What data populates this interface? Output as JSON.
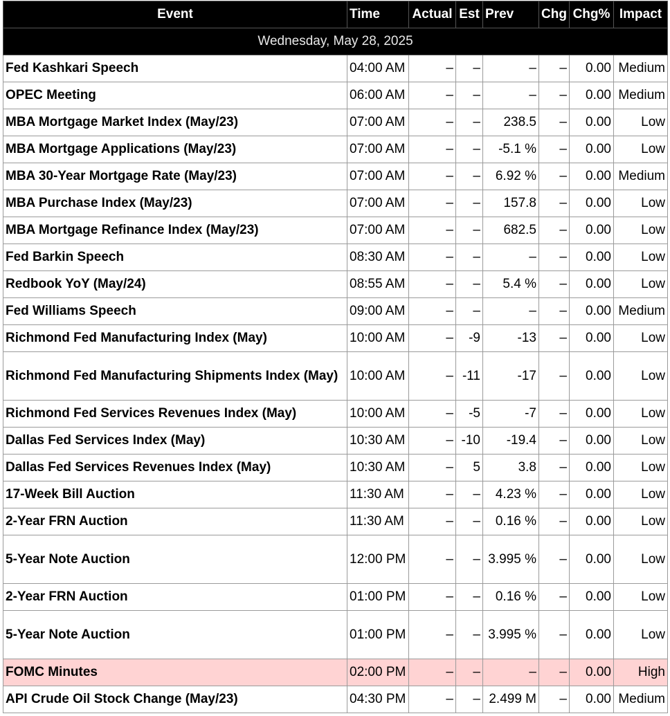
{
  "columns": {
    "event": "Event",
    "time": "Time",
    "actual": "Actual",
    "est": "Est",
    "prev": "Prev",
    "chg": "Chg",
    "chg_pct": "Chg%",
    "impact": "Impact"
  },
  "date_label": "Wednesday, May 28, 2025",
  "colors": {
    "header_bg": "#000000",
    "high_impact_row": "#ffd3d3"
  },
  "rows": [
    {
      "event": "Fed Kashkari Speech",
      "time": "04:00 AM",
      "actual": "–",
      "est": "–",
      "prev": "–",
      "chg": "–",
      "chg_pct": "0.00",
      "impact": "Medium"
    },
    {
      "event": "OPEC Meeting",
      "time": "06:00 AM",
      "actual": "–",
      "est": "–",
      "prev": "–",
      "chg": "–",
      "chg_pct": "0.00",
      "impact": "Medium"
    },
    {
      "event": "MBA Mortgage Market Index (May/23)",
      "time": "07:00 AM",
      "actual": "–",
      "est": "–",
      "prev": "238.5",
      "chg": "–",
      "chg_pct": "0.00",
      "impact": "Low"
    },
    {
      "event": "MBA Mortgage Applications (May/23)",
      "time": "07:00 AM",
      "actual": "–",
      "est": "–",
      "prev": "-5.1 %",
      "chg": "–",
      "chg_pct": "0.00",
      "impact": "Low"
    },
    {
      "event": "MBA 30-Year Mortgage Rate (May/23)",
      "time": "07:00 AM",
      "actual": "–",
      "est": "–",
      "prev": "6.92 %",
      "chg": "–",
      "chg_pct": "0.00",
      "impact": "Medium"
    },
    {
      "event": "MBA Purchase Index (May/23)",
      "time": "07:00 AM",
      "actual": "–",
      "est": "–",
      "prev": "157.8",
      "chg": "–",
      "chg_pct": "0.00",
      "impact": "Low"
    },
    {
      "event": "MBA Mortgage Refinance Index (May/23)",
      "time": "07:00 AM",
      "actual": "–",
      "est": "–",
      "prev": "682.5",
      "chg": "–",
      "chg_pct": "0.00",
      "impact": "Low"
    },
    {
      "event": "Fed Barkin Speech",
      "time": "08:30 AM",
      "actual": "–",
      "est": "–",
      "prev": "–",
      "chg": "–",
      "chg_pct": "0.00",
      "impact": "Low"
    },
    {
      "event": "Redbook YoY (May/24)",
      "time": "08:55 AM",
      "actual": "–",
      "est": "–",
      "prev": "5.4 %",
      "chg": "–",
      "chg_pct": "0.00",
      "impact": "Low"
    },
    {
      "event": "Fed Williams Speech",
      "time": "09:00 AM",
      "actual": "–",
      "est": "–",
      "prev": "–",
      "chg": "–",
      "chg_pct": "0.00",
      "impact": "Medium"
    },
    {
      "event": "Richmond Fed Manufacturing Index (May)",
      "time": "10:00 AM",
      "actual": "–",
      "est": "-9",
      "prev": "-13",
      "chg": "–",
      "chg_pct": "0.00",
      "impact": "Low"
    },
    {
      "event": "Richmond Fed Manufacturing Shipments Index (May)",
      "time": "10:00 AM",
      "actual": "–",
      "est": "-11",
      "prev": "-17",
      "chg": "–",
      "chg_pct": "0.00",
      "impact": "Low"
    },
    {
      "event": "Richmond Fed Services Revenues Index (May)",
      "time": "10:00 AM",
      "actual": "–",
      "est": "-5",
      "prev": "-7",
      "chg": "–",
      "chg_pct": "0.00",
      "impact": "Low"
    },
    {
      "event": "Dallas Fed Services Index (May)",
      "time": "10:30 AM",
      "actual": "–",
      "est": "-10",
      "prev": "-19.4",
      "chg": "–",
      "chg_pct": "0.00",
      "impact": "Low"
    },
    {
      "event": "Dallas Fed Services Revenues Index (May)",
      "time": "10:30 AM",
      "actual": "–",
      "est": "5",
      "prev": "3.8",
      "chg": "–",
      "chg_pct": "0.00",
      "impact": "Low"
    },
    {
      "event": "17-Week Bill Auction",
      "time": "11:30 AM",
      "actual": "–",
      "est": "–",
      "prev": "4.23 %",
      "chg": "–",
      "chg_pct": "0.00",
      "impact": "Low"
    },
    {
      "event": "2-Year FRN Auction",
      "time": "11:30 AM",
      "actual": "–",
      "est": "–",
      "prev": "0.16 %",
      "chg": "–",
      "chg_pct": "0.00",
      "impact": "Low"
    },
    {
      "event": "5-Year Note Auction",
      "time": "12:00 PM",
      "actual": "–",
      "est": "–",
      "prev": "3.995 %",
      "chg": "–",
      "chg_pct": "0.00",
      "impact": "Low"
    },
    {
      "event": "2-Year FRN Auction",
      "time": "01:00 PM",
      "actual": "–",
      "est": "–",
      "prev": "0.16 %",
      "chg": "–",
      "chg_pct": "0.00",
      "impact": "Low"
    },
    {
      "event": "5-Year Note Auction",
      "time": "01:00 PM",
      "actual": "–",
      "est": "–",
      "prev": "3.995 %",
      "chg": "–",
      "chg_pct": "0.00",
      "impact": "Low"
    },
    {
      "event": "FOMC Minutes",
      "time": "02:00 PM",
      "actual": "–",
      "est": "–",
      "prev": "–",
      "chg": "–",
      "chg_pct": "0.00",
      "impact": "High"
    },
    {
      "event": "API Crude Oil Stock Change (May/23)",
      "time": "04:30 PM",
      "actual": "–",
      "est": "–",
      "prev": "2.499 M",
      "chg": "–",
      "chg_pct": "0.00",
      "impact": "Medium"
    }
  ]
}
